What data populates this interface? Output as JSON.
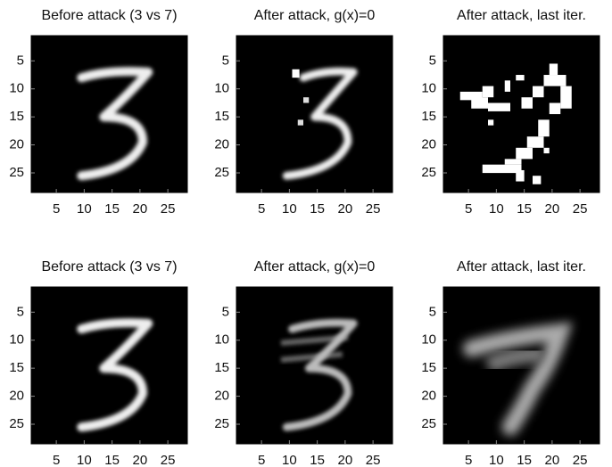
{
  "chart_data": [
    {
      "type": "image",
      "title": "Before attack (3 vs 7)",
      "xlim": [
        0.5,
        28.5
      ],
      "ylim": [
        0.5,
        28.5
      ],
      "xticks": [
        5,
        10,
        15,
        20,
        25
      ],
      "yticks": [
        5,
        10,
        15,
        20,
        25
      ]
    },
    {
      "type": "image",
      "title": "After attack, g(x)=0",
      "xlim": [
        0.5,
        28.5
      ],
      "ylim": [
        0.5,
        28.5
      ],
      "xticks": [
        5,
        10,
        15,
        20,
        25
      ],
      "yticks": [
        5,
        10,
        15,
        20,
        25
      ]
    },
    {
      "type": "image",
      "title": "After attack, last iter.",
      "xlim": [
        0.5,
        28.5
      ],
      "ylim": [
        0.5,
        28.5
      ],
      "xticks": [
        5,
        10,
        15,
        20,
        25
      ],
      "yticks": [
        5,
        10,
        15,
        20,
        25
      ]
    },
    {
      "type": "image",
      "title": "Before attack (3 vs 7)",
      "xlim": [
        0.5,
        28.5
      ],
      "ylim": [
        0.5,
        28.5
      ],
      "xticks": [
        5,
        10,
        15,
        20,
        25
      ],
      "yticks": [
        5,
        10,
        15,
        20,
        25
      ]
    },
    {
      "type": "image",
      "title": "After attack, g(x)=0",
      "xlim": [
        0.5,
        28.5
      ],
      "ylim": [
        0.5,
        28.5
      ],
      "xticks": [
        5,
        10,
        15,
        20,
        25
      ],
      "yticks": [
        5,
        10,
        15,
        20,
        25
      ]
    },
    {
      "type": "image",
      "title": "After attack, last iter.",
      "xlim": [
        0.5,
        28.5
      ],
      "ylim": [
        0.5,
        28.5
      ],
      "xticks": [
        5,
        10,
        15,
        20,
        25
      ],
      "yticks": [
        5,
        10,
        15,
        20,
        25
      ]
    }
  ]
}
